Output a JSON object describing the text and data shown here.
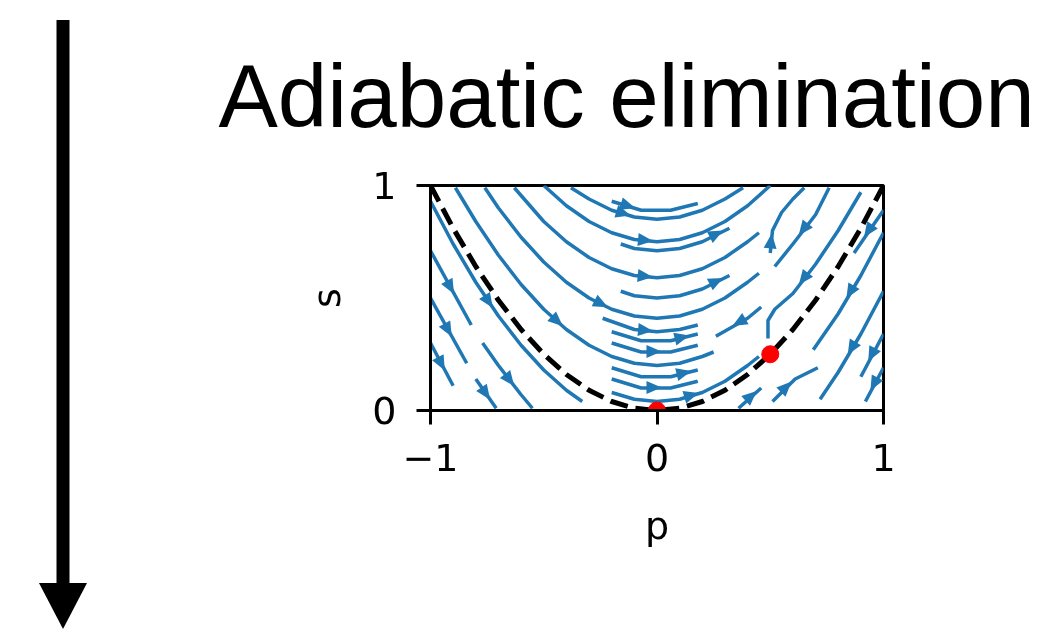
{
  "chart_data": {
    "type": "line",
    "title": "Adiabatic elimination",
    "xlabel": "p",
    "ylabel": "s",
    "xlim": [
      -1,
      1
    ],
    "ylim": [
      0,
      1
    ],
    "xticks": [
      {
        "value": -1,
        "label": "−1"
      },
      0,
      1
    ],
    "yticks": [
      0,
      1
    ],
    "series": [
      {
        "color": "#1f77b4",
        "x": [
          -0.2,
          -0.07,
          0.06,
          0.18
        ],
        "values": [
          0.93,
          0.89,
          0.89,
          0.92
        ]
      },
      {
        "color": "#1f77b4",
        "x": [
          -0.38,
          -0.3,
          -0.2,
          -0.1,
          0,
          0.1,
          0.2,
          0.3,
          0.38
        ],
        "values": [
          0.99,
          0.94,
          0.89,
          0.86,
          0.85,
          0.86,
          0.89,
          0.94,
          0.99
        ]
      },
      {
        "color": "#1f77b4",
        "x": [
          -0.5,
          -0.4,
          -0.3,
          -0.2,
          -0.1,
          0,
          0.1,
          0.2,
          0.3,
          0.4,
          0.5
        ],
        "values": [
          1,
          0.91,
          0.84,
          0.79,
          0.76,
          0.75,
          0.76,
          0.79,
          0.84,
          0.91,
          1
        ]
      },
      {
        "color": "#1f77b4",
        "x": [
          -0.16,
          -0.1,
          0,
          0.1,
          0.2,
          0.32
        ],
        "values": [
          0.74,
          0.72,
          0.71,
          0.72,
          0.75,
          0.81
        ]
      },
      {
        "color": "#1f77b4",
        "x": [
          -0.63,
          -0.5,
          -0.4,
          -0.3,
          -0.2,
          -0.1,
          0,
          0.1,
          0.2,
          0.3,
          0.4,
          0.45
        ],
        "values": [
          0.99,
          0.84,
          0.75,
          0.68,
          0.63,
          0.6,
          0.59,
          0.6,
          0.63,
          0.68,
          0.75,
          0.79
        ]
      },
      {
        "color": "#1f77b4",
        "x": [
          0.5,
          0.51,
          0.55,
          0.6,
          0.65
        ],
        "values": [
          0.7,
          0.8,
          0.88,
          0.94,
          0.99
        ]
      },
      {
        "color": "#1f77b4",
        "x": [
          -0.16,
          -0.1,
          0,
          0.1,
          0.2,
          0.32
        ],
        "values": [
          0.53,
          0.51,
          0.5,
          0.51,
          0.54,
          0.6
        ]
      },
      {
        "color": "#1f77b4",
        "x": [
          -0.76,
          -0.7,
          -0.6,
          -0.5,
          -0.4,
          -0.3,
          -0.2,
          -0.1,
          0,
          0.1,
          0.2,
          0.3,
          0.4,
          0.45
        ],
        "values": [
          0.99,
          0.9,
          0.77,
          0.66,
          0.57,
          0.5,
          0.45,
          0.42,
          0.41,
          0.42,
          0.45,
          0.5,
          0.57,
          0.61
        ]
      },
      {
        "color": "#1f77b4",
        "x": [
          -0.24,
          -0.1,
          0,
          0.1,
          0.18
        ],
        "values": [
          0.41,
          0.36,
          0.35,
          0.36,
          0.38
        ]
      },
      {
        "color": "#1f77b4",
        "x": [
          -0.2,
          -0.07,
          0.06,
          0.18
        ],
        "values": [
          0.35,
          0.31,
          0.31,
          0.34
        ]
      },
      {
        "color": "#1f77b4",
        "x": [
          -0.2,
          -0.07,
          0.06,
          0.18
        ],
        "values": [
          0.3,
          0.26,
          0.26,
          0.29
        ]
      },
      {
        "color": "#1f77b4",
        "x": [
          -0.89,
          -0.8,
          -0.7,
          -0.6,
          -0.5,
          -0.4,
          -0.3,
          -0.2,
          -0.1,
          0,
          0.1,
          0.2,
          0.25
        ],
        "values": [
          0.99,
          0.84,
          0.69,
          0.56,
          0.45,
          0.36,
          0.29,
          0.24,
          0.21,
          0.2,
          0.21,
          0.24,
          0.26
        ]
      },
      {
        "color": "#1f77b4",
        "x": [
          -0.2,
          -0.07,
          0.06,
          0.18
        ],
        "values": [
          0.19,
          0.15,
          0.15,
          0.18
        ]
      },
      {
        "color": "#1f77b4",
        "x": [
          -0.2,
          -0.07,
          0.06,
          0.18
        ],
        "values": [
          0.14,
          0.1,
          0.1,
          0.13
        ]
      },
      {
        "color": "#1f77b4",
        "x": [
          -0.2,
          -0.1,
          0,
          0.1,
          0.2,
          0.3,
          0.4,
          0.45
        ],
        "values": [
          0.08,
          0.05,
          0.04,
          0.05,
          0.08,
          0.13,
          0.2,
          0.24
        ]
      },
      {
        "color": "#1f77b4",
        "x": [
          0.46,
          0.4,
          0.33,
          0.26
        ],
        "values": [
          0.46,
          0.41,
          0.37,
          0.33
        ]
      },
      {
        "color": "#1f77b4",
        "x": [
          1,
          0.87
        ],
        "values": [
          0.89,
          0.7
        ]
      },
      {
        "color": "#1f77b4",
        "x": [
          0.76,
          0.7,
          0.6,
          0.52
        ],
        "values": [
          0.99,
          0.87,
          0.74,
          0.64
        ]
      },
      {
        "color": "#1f77b4",
        "x": [
          0.9,
          0.8,
          0.7,
          0.6,
          0.52,
          0.49,
          0.49
        ],
        "values": [
          0.97,
          0.8,
          0.65,
          0.52,
          0.45,
          0.4,
          0.32
        ]
      },
      {
        "color": "#1f77b4",
        "x": [
          1,
          0.9,
          0.8,
          0.69
        ],
        "values": [
          0.79,
          0.6,
          0.43,
          0.27
        ]
      },
      {
        "color": "#1f77b4",
        "x": [
          1,
          0.9,
          0.8,
          0.72
        ],
        "values": [
          0.53,
          0.34,
          0.17,
          0.05
        ]
      },
      {
        "color": "#1f77b4",
        "x": [
          1,
          0.9
        ],
        "values": [
          0.34,
          0.15
        ]
      },
      {
        "color": "#1f77b4",
        "x": [
          1,
          0.92
        ],
        "values": [
          0.19,
          0.04
        ]
      },
      {
        "color": "#1f77b4",
        "x": [
          0.51,
          0.61,
          0.71
        ],
        "values": [
          0.04,
          0.14,
          0.19
        ]
      },
      {
        "color": "#1f77b4",
        "x": [
          0.36,
          0.46
        ],
        "values": [
          0.01,
          0.1
        ]
      },
      {
        "color": "#1f77b4",
        "x": [
          -1,
          -0.9,
          -0.8,
          -0.7,
          -0.6,
          -0.5,
          -0.4,
          -0.33
        ],
        "values": [
          0.93,
          0.74,
          0.57,
          0.42,
          0.29,
          0.18,
          0.09,
          0.04
        ]
      },
      {
        "color": "#1f77b4",
        "x": [
          -1,
          -0.82
        ],
        "values": [
          0.71,
          0.38
        ]
      },
      {
        "color": "#1f77b4",
        "x": [
          -0.77,
          -0.7,
          -0.6,
          -0.55
        ],
        "values": [
          0.3,
          0.2,
          0.07,
          0.01
        ]
      },
      {
        "color": "#1f77b4",
        "x": [
          -1,
          -0.84
        ],
        "values": [
          0.5,
          0.21
        ]
      },
      {
        "color": "#1f77b4",
        "x": [
          -0.8,
          -0.71
        ],
        "values": [
          0.14,
          0.01
        ]
      },
      {
        "color": "#1f77b4",
        "x": [
          -1,
          -0.9
        ],
        "values": [
          0.3,
          0.11
        ]
      },
      {
        "color": "#000000",
        "line_style": "dashed",
        "x": [
          -1,
          -0.9,
          -0.8,
          -0.7,
          -0.6,
          -0.5,
          -0.4,
          -0.3,
          -0.2,
          -0.1,
          0,
          0.1,
          0.2,
          0.3,
          0.4,
          0.5,
          0.6,
          0.7,
          0.8,
          0.9,
          1
        ],
        "values": [
          1,
          0.81,
          0.64,
          0.49,
          0.36,
          0.25,
          0.16,
          0.09,
          0.04,
          0.01,
          0,
          0.01,
          0.04,
          0.09,
          0.16,
          0.25,
          0.36,
          0.49,
          0.64,
          0.81,
          1
        ]
      },
      {
        "type": "scatter",
        "color": "#ff0000",
        "marker": "circle",
        "x": [
          0,
          0.5
        ],
        "values": [
          0,
          0.25
        ]
      }
    ]
  }
}
